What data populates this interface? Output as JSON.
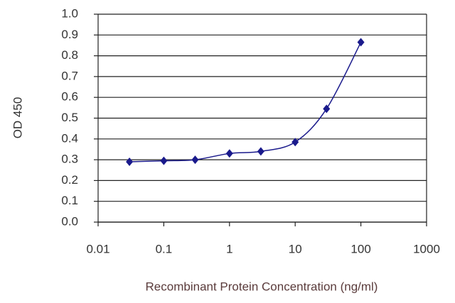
{
  "chart_data": {
    "type": "line",
    "x_label": "Recombinant Protein Concentration (ng/ml)",
    "y_label": "OD 450",
    "x": [
      0.03,
      0.1,
      0.3,
      1,
      3,
      10,
      30,
      100
    ],
    "series": [
      {
        "color": "#1a1a8c",
        "values": [
          0.29,
          0.295,
          0.3,
          0.33,
          0.34,
          0.385,
          0.545,
          0.865
        ]
      }
    ],
    "x_log": true,
    "xlim": [
      0.01,
      1000
    ],
    "xticks": [
      0.01,
      0.1,
      1,
      10,
      100,
      1000
    ],
    "ylim": [
      0,
      1
    ],
    "yticks": [
      {
        "value": 0,
        "label": "0.0"
      },
      0.1,
      0.2,
      0.3,
      0.4,
      0.5,
      0.6,
      0.7,
      0.8,
      0.9,
      {
        "value": 1,
        "label": "1.0"
      }
    ],
    "grid": true
  }
}
